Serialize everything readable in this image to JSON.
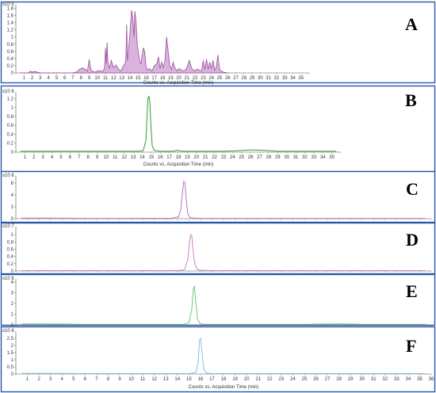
{
  "chart_data": [
    {
      "type": "line",
      "panel_label": "A",
      "multiplier": "x10 5",
      "xlabel": "Counts vs. Acquisition Time (min)",
      "xlim": [
        0,
        36
      ],
      "ylim": [
        0,
        1.9
      ],
      "yticks": [
        0,
        0.2,
        0.4,
        0.6,
        0.8,
        1,
        1.2,
        1.4,
        1.6,
        1.8
      ],
      "xticks": [
        1,
        2,
        3,
        4,
        5,
        6,
        7,
        8,
        9,
        10,
        11,
        12,
        13,
        14,
        15,
        16,
        17,
        18,
        19,
        20,
        21,
        22,
        23,
        24,
        25,
        26,
        27,
        28,
        29,
        30,
        31,
        32,
        33,
        34,
        35
      ],
      "fill": true,
      "color": "#9b4f9b",
      "fill_color": "#d9b3de",
      "series": [
        {
          "x": [
            0.5,
            1.5,
            1.8,
            2.0,
            2.3,
            3.0,
            4,
            5,
            6,
            7,
            7.5,
            7.8,
            8.2,
            8.5,
            8.8,
            9.0,
            9.2,
            9.4,
            9.7,
            10,
            10.4,
            10.7,
            10.9,
            11.0,
            11.1,
            11.2,
            11.3,
            11.5,
            11.7,
            12.0,
            12.3,
            12.6,
            12.9,
            13.2,
            13.4,
            13.5,
            13.6,
            13.7,
            13.8,
            14.0,
            14.2,
            14.35,
            14.5,
            14.6,
            14.75,
            14.9,
            15.05,
            15.2,
            15.35,
            15.5,
            15.65,
            15.8,
            16.0,
            16.2,
            16.4,
            16.7,
            17.0,
            17.3,
            17.5,
            17.7,
            17.9,
            18.1,
            18.3,
            18.5,
            18.7,
            18.9,
            19.1,
            19.3,
            19.5,
            19.8,
            20.0,
            20.2,
            20.5,
            20.8,
            21.0,
            21.3,
            21.6,
            21.9,
            22.2,
            22.5,
            22.8,
            23.0,
            23.2,
            23.4,
            23.6,
            23.8,
            24.0,
            24.2,
            24.4,
            24.6,
            24.8,
            25.0,
            25.2,
            25.5,
            26
          ],
          "y": [
            0,
            0,
            0.05,
            0.02,
            0.04,
            0,
            0,
            0,
            0,
            0,
            0.03,
            0.1,
            0.14,
            0.1,
            0.05,
            0.38,
            0.1,
            0.05,
            0.02,
            0.05,
            0.06,
            0.04,
            0.15,
            0.7,
            0.25,
            0.85,
            0.3,
            0.12,
            0.35,
            0.15,
            0.22,
            0.1,
            0.05,
            0.2,
            0.25,
            0.4,
            1.35,
            0.35,
            0.55,
            1.1,
            1.75,
            1.55,
            1.0,
            1.72,
            1.45,
            0.8,
            0.55,
            0.35,
            0.25,
            0.5,
            0.7,
            0.6,
            0.15,
            0.08,
            0.12,
            0.05,
            0.2,
            0.25,
            0.45,
            0.12,
            0.3,
            0.15,
            0.35,
            1.0,
            0.6,
            0.2,
            0.1,
            0.3,
            0.15,
            0.05,
            0.12,
            0.1,
            0.05,
            0.08,
            0.15,
            0.35,
            0.12,
            0.05,
            0.1,
            0.08,
            0.05,
            0.35,
            0.1,
            0.38,
            0.1,
            0.3,
            0.12,
            0.35,
            0.08,
            0.15,
            0.5,
            0.1,
            0.05,
            0.02,
            0
          ]
        }
      ]
    },
    {
      "type": "line",
      "panel_label": "B",
      "multiplier": "x10 6",
      "xlabel": "Counts vs. Acquisition Time (min)",
      "xlim": [
        0,
        36
      ],
      "ylim": [
        0,
        1.35
      ],
      "yticks": [
        0,
        0.2,
        0.4,
        0.6,
        0.8,
        1,
        1.2
      ],
      "xticks": [
        1,
        2,
        3,
        4,
        5,
        6,
        7,
        8,
        9,
        10,
        11,
        12,
        13,
        14,
        15,
        16,
        17,
        18,
        19,
        20,
        21,
        22,
        23,
        24,
        25,
        26,
        27,
        28,
        29,
        30,
        31,
        32,
        33,
        34,
        35
      ],
      "fill": false,
      "color": "#2e9e2e",
      "series": [
        {
          "x": [
            0.5,
            5,
            10,
            13.5,
            14.1,
            14.4,
            14.55,
            14.65,
            14.75,
            14.85,
            14.95,
            15.1,
            15.3,
            15.6,
            16,
            17.5,
            17.8,
            18.1,
            18.4,
            20,
            23,
            24.5,
            26,
            27.5,
            29,
            35.5
          ],
          "y": [
            0.02,
            0.02,
            0.02,
            0.02,
            0.03,
            0.25,
            0.9,
            1.22,
            1.25,
            1.1,
            0.6,
            0.15,
            0.04,
            0.03,
            0.02,
            0.02,
            0.04,
            0.03,
            0.02,
            0.02,
            0.02,
            0.03,
            0.05,
            0.04,
            0.02,
            0.02
          ]
        }
      ]
    },
    {
      "type": "line",
      "panel_label": "C",
      "multiplier": "x10 6",
      "xlim": [
        0,
        36
      ],
      "ylim": [
        0,
        7.2
      ],
      "yticks": [
        0,
        2,
        4,
        6
      ],
      "fill": false,
      "color": "#b079b5",
      "series": [
        {
          "x": [
            0.5,
            3,
            6,
            10,
            13.5,
            14.1,
            14.3,
            14.45,
            14.55,
            14.65,
            14.75,
            14.9,
            15.1,
            15.4,
            16,
            20,
            25,
            30,
            35.5
          ],
          "y": [
            0.1,
            0.1,
            0.05,
            0.05,
            0.08,
            0.3,
            1.5,
            4.5,
            6.3,
            6.1,
            3.5,
            0.8,
            0.2,
            0.1,
            0.05,
            0.05,
            0.05,
            0.05,
            0.05
          ]
        }
      ]
    },
    {
      "type": "line",
      "panel_label": "D",
      "multiplier": "x10 7",
      "xlim": [
        0,
        36
      ],
      "ylim": [
        0,
        1.22
      ],
      "yticks": [
        0,
        0.2,
        0.4,
        0.6,
        0.8,
        1
      ],
      "fill": false,
      "color": "#c985bf",
      "series": [
        {
          "x": [
            0.5,
            5,
            10,
            14,
            14.6,
            14.9,
            15.05,
            15.15,
            15.25,
            15.35,
            15.5,
            15.7,
            16,
            17,
            20,
            25,
            30,
            35.5
          ],
          "y": [
            0.01,
            0.01,
            0.01,
            0.01,
            0.03,
            0.3,
            0.8,
            1.0,
            0.95,
            0.6,
            0.2,
            0.05,
            0.02,
            0.01,
            0.01,
            0.01,
            0.01,
            0.01
          ]
        }
      ]
    },
    {
      "type": "line",
      "panel_label": "E",
      "multiplier": "x10 6",
      "xlim": [
        0,
        36
      ],
      "ylim": [
        0,
        4.3
      ],
      "yticks": [
        0,
        1,
        2,
        3,
        4
      ],
      "fill": false,
      "color": "#74c77a",
      "series": [
        {
          "x": [
            0.5,
            3,
            6,
            10,
            14.5,
            15.0,
            15.25,
            15.38,
            15.48,
            15.6,
            15.75,
            15.95,
            16.2,
            17,
            20,
            25,
            28,
            30,
            35.5
          ],
          "y": [
            0.1,
            0.08,
            0.05,
            0.05,
            0.05,
            0.2,
            1.5,
            3.4,
            3.6,
            2.0,
            0.5,
            0.15,
            0.07,
            0.05,
            0.05,
            0.05,
            0.1,
            0.05,
            0.05
          ]
        }
      ]
    },
    {
      "type": "line",
      "panel_label": "F",
      "multiplier": "x10 6",
      "xlabel": "Counts vs. Acquisition Time (min)",
      "xlim": [
        0,
        36
      ],
      "ylim": [
        0,
        3.0
      ],
      "yticks": [
        0,
        0.5,
        1,
        1.5,
        2,
        2.5
      ],
      "xticks": [
        1,
        2,
        3,
        4,
        5,
        6,
        7,
        8,
        9,
        10,
        11,
        12,
        13,
        14,
        15,
        16,
        17,
        18,
        19,
        20,
        21,
        22,
        23,
        24,
        25,
        26,
        27,
        28,
        29,
        30,
        31,
        32,
        33,
        34,
        35,
        36
      ],
      "fill": false,
      "color": "#86c3dc",
      "series": [
        {
          "x": [
            0.5,
            3,
            6,
            10,
            15,
            15.6,
            15.8,
            15.92,
            16.02,
            16.12,
            16.3,
            16.5,
            17,
            20,
            25,
            30,
            35.5
          ],
          "y": [
            0.05,
            0.05,
            0.03,
            0.03,
            0.03,
            0.1,
            0.8,
            2.4,
            2.5,
            1.6,
            0.3,
            0.08,
            0.03,
            0.03,
            0.03,
            0.03,
            0.03
          ]
        }
      ]
    }
  ]
}
